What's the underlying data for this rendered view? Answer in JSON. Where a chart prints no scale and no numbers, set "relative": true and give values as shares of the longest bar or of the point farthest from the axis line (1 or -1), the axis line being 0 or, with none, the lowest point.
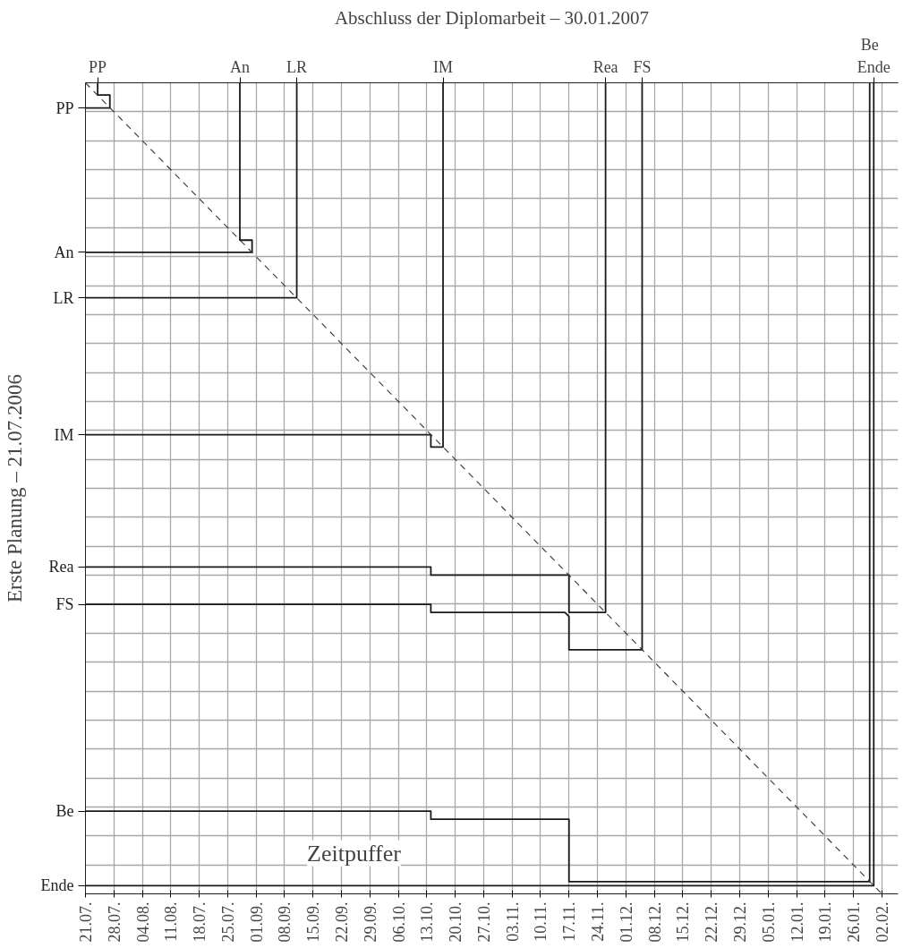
{
  "chart_data": {
    "type": "line",
    "title": "Abschluss der Diplomarbeit – 30.01.2007",
    "ylabel": "Erste Planung – 21.07.2006",
    "relative": true,
    "xlim": [
      "2006-07-21",
      "2007-02-06"
    ],
    "xticks": [
      {
        "value": "2006-07-21",
        "label": "21.07."
      },
      {
        "value": "2006-07-28",
        "label": "28.07."
      },
      {
        "value": "2006-08-04",
        "label": "04.08."
      },
      {
        "value": "2006-08-11",
        "label": "11.08."
      },
      {
        "value": "2006-08-18",
        "label": "18.07."
      },
      {
        "value": "2006-08-25",
        "label": "25.07."
      },
      {
        "value": "2006-09-01",
        "label": "01.09."
      },
      {
        "value": "2006-09-08",
        "label": "08.09."
      },
      {
        "value": "2006-09-15",
        "label": "15.09."
      },
      {
        "value": "2006-09-22",
        "label": "22.09."
      },
      {
        "value": "2006-09-29",
        "label": "29.09."
      },
      {
        "value": "2006-10-06",
        "label": "06.10."
      },
      {
        "value": "2006-10-13",
        "label": "13.10."
      },
      {
        "value": "2006-10-20",
        "label": "20.10."
      },
      {
        "value": "2006-10-27",
        "label": "27.10."
      },
      {
        "value": "2006-11-03",
        "label": "03.11."
      },
      {
        "value": "2006-11-10",
        "label": "10.11."
      },
      {
        "value": "2006-11-17",
        "label": "17.11."
      },
      {
        "value": "2006-11-24",
        "label": "24.11."
      },
      {
        "value": "2006-12-01",
        "label": "01.12."
      },
      {
        "value": "2006-12-08",
        "label": "08.12."
      },
      {
        "value": "2006-12-15",
        "label": "15.12."
      },
      {
        "value": "2006-12-22",
        "label": "22.12."
      },
      {
        "value": "2006-12-29",
        "label": "29.12."
      },
      {
        "value": "2007-01-05",
        "label": "05.01."
      },
      {
        "value": "2007-01-12",
        "label": "12.01."
      },
      {
        "value": "2007-01-19",
        "label": "19.01."
      },
      {
        "value": "2007-01-26",
        "label": "26.01."
      },
      {
        "value": "2007-02-02",
        "label": "02.02."
      }
    ],
    "grid": true,
    "annotations": [
      {
        "text": "PP",
        "x": "2006-07-21",
        "y": 0.969
      },
      {
        "text": "An",
        "x": "2006-07-21",
        "y": 0.791
      },
      {
        "text": "LR",
        "x": "2006-07-21",
        "y": 0.735
      },
      {
        "text": "IM",
        "x": "2006-07-21",
        "y": 0.566
      },
      {
        "text": "Rea",
        "x": "2006-07-21",
        "y": 0.403
      },
      {
        "text": "FS",
        "x": "2006-07-21",
        "y": 0.357
      },
      {
        "text": "Be",
        "x": "2006-07-21",
        "y": 0.102
      },
      {
        "text": "Ende",
        "x": "2006-07-21",
        "y": 0.01
      },
      {
        "text": "PP",
        "x": "2006-07-24",
        "y": 1
      },
      {
        "text": "An",
        "x": "2006-08-28",
        "y": 1
      },
      {
        "text": "LR",
        "x": "2006-09-11",
        "y": 1
      },
      {
        "text": "IM",
        "x": "2006-10-17",
        "y": 1
      },
      {
        "text": "Rea",
        "x": "2006-11-26",
        "y": 1
      },
      {
        "text": "FS",
        "x": "2006-12-05",
        "y": 1
      },
      {
        "text": "Be",
        "x": "2007-01-30",
        "y": 1
      },
      {
        "text": "Ende",
        "x": "2007-01-31",
        "y": 1
      },
      "Zeitpuffer"
    ],
    "series": [
      {
        "color": "#1a1a1a",
        "x": [
          "2006-07-21",
          "2006-07-27",
          "2006-07-27",
          "2006-07-24",
          "2006-07-24"
        ],
        "values": [
          0.969,
          0.969,
          0.985,
          0.985,
          1
        ]
      },
      {
        "color": "#1a1a1a",
        "x": [
          "2006-07-21",
          "2006-08-31",
          "2006-08-31",
          "2006-08-28",
          "2006-08-28"
        ],
        "values": [
          0.791,
          0.791,
          0.806,
          0.806,
          1
        ]
      },
      {
        "color": "#1a1a1a",
        "x": [
          "2006-07-21",
          "2006-09-11",
          "2006-09-11"
        ],
        "values": [
          0.735,
          0.735,
          1
        ]
      },
      {
        "color": "#1a1a1a",
        "x": [
          "2006-07-21",
          "2006-10-14",
          "2006-10-14",
          "2006-10-17",
          "2006-10-17"
        ],
        "values": [
          0.566,
          0.566,
          0.551,
          0.551,
          1
        ]
      },
      {
        "color": "#1a1a1a",
        "x": [
          "2006-07-21",
          "2006-10-14",
          "2006-10-14",
          "2006-11-17",
          "2006-11-17",
          "2006-11-26",
          "2006-11-26"
        ],
        "values": [
          0.403,
          0.403,
          0.393,
          0.393,
          0.347,
          0.347,
          1
        ]
      },
      {
        "color": "#1a1a1a",
        "x": [
          "2006-07-21",
          "2006-10-14",
          "2006-10-14",
          "2006-11-16",
          "2006-11-17",
          "2006-11-17",
          "2006-12-05",
          "2006-12-05"
        ],
        "values": [
          0.357,
          0.357,
          0.347,
          0.347,
          0.342,
          0.301,
          0.301,
          1
        ]
      },
      {
        "color": "#1a1a1a",
        "x": [
          "2006-07-21",
          "2006-10-14",
          "2006-10-14",
          "2006-11-17",
          "2006-11-17",
          "2007-01-30",
          "2007-01-30"
        ],
        "values": [
          0.102,
          0.102,
          0.092,
          0.092,
          0.015,
          0.015,
          1
        ]
      },
      {
        "color": "#1a1a1a",
        "x": [
          "2006-07-21",
          "2007-01-31",
          "2007-01-31"
        ],
        "values": [
          0.01,
          0.01,
          1
        ]
      },
      {
        "color": "#333333",
        "line_style": "dashed",
        "x": [
          "2006-07-21",
          "2007-02-02"
        ],
        "values": [
          1,
          0
        ]
      }
    ]
  }
}
